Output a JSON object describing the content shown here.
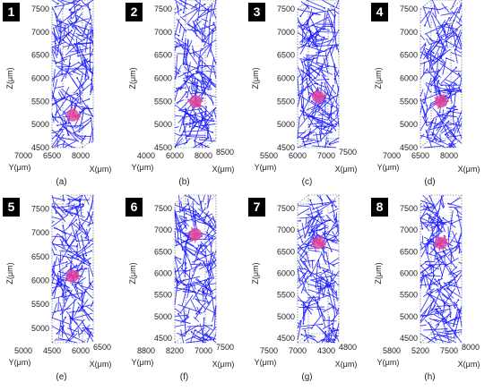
{
  "chart_data": [
    {
      "type": "scatter",
      "panel_number": "1",
      "caption": "(a)",
      "zlabel": "Z(μm)",
      "xlabel": "X(μm)",
      "ylabel": "Y(μm)",
      "z_ticks": [
        "7500",
        "7000",
        "6500",
        "6000",
        "5500",
        "5000",
        "4500"
      ],
      "zlim": [
        4500,
        7500
      ],
      "y_ticks": [
        "7000",
        "6500"
      ],
      "x_ticks": [
        "8000"
      ],
      "target_z": 5200,
      "target_y": 6700,
      "target_x": 8000,
      "colors": {
        "fiber": "#1a1aff",
        "target": "#e0409a"
      }
    },
    {
      "type": "scatter",
      "panel_number": "2",
      "caption": "(b)",
      "zlabel": "Z(μm)",
      "xlabel": "X(μm)",
      "ylabel": "Y(μm)",
      "z_ticks": [
        "7500",
        "7000",
        "6500",
        "6000",
        "5500",
        "5000",
        "4500"
      ],
      "zlim": [
        4500,
        7500
      ],
      "y_ticks": [
        "4000",
        "6000"
      ],
      "x_ticks": [
        "8000",
        "8500"
      ],
      "target_z": 5500,
      "target_y": 6000,
      "target_x": 8000,
      "colors": {
        "fiber": "#1a1aff",
        "target": "#e0409a"
      }
    },
    {
      "type": "scatter",
      "panel_number": "3",
      "caption": "(c)",
      "zlabel": "Z(μm)",
      "xlabel": "X(μm)",
      "ylabel": "Y(μm)",
      "z_ticks": [
        "7500",
        "7000",
        "6500",
        "6000",
        "5500",
        "5000",
        "4500"
      ],
      "zlim": [
        4500,
        7500
      ],
      "y_ticks": [
        "5500",
        "6000"
      ],
      "x_ticks": [
        "7000",
        "7500"
      ],
      "target_z": 5600,
      "target_y": 6000,
      "target_x": 7000,
      "colors": {
        "fiber": "#1a1aff",
        "target": "#e0409a"
      }
    },
    {
      "type": "scatter",
      "panel_number": "4",
      "caption": "(d)",
      "zlabel": "Z(μm)",
      "xlabel": "X(μm)",
      "ylabel": "Y(μm)",
      "z_ticks": [
        "7500",
        "7000",
        "6500",
        "6000",
        "5500",
        "5000",
        "4500"
      ],
      "zlim": [
        4500,
        7500
      ],
      "y_ticks": [
        "7000",
        "6500"
      ],
      "x_ticks": [
        "8000"
      ],
      "target_z": 5500,
      "target_y": 6700,
      "target_x": 8000,
      "colors": {
        "fiber": "#1a1aff",
        "target": "#e0409a"
      }
    },
    {
      "type": "scatter",
      "panel_number": "5",
      "caption": "(e)",
      "zlabel": "Z(μm)",
      "xlabel": "X(μm)",
      "ylabel": "Y(μm)",
      "z_ticks": [
        "7500",
        "7000",
        "6500",
        "6000",
        "5500",
        "5000"
      ],
      "zlim": [
        4700,
        7600
      ],
      "y_ticks": [
        "5000",
        "4500"
      ],
      "x_ticks": [
        "6000",
        "6500"
      ],
      "target_z": 6100,
      "target_y": 4700,
      "target_x": 6000,
      "colors": {
        "fiber": "#1a1aff",
        "target": "#e0409a"
      }
    },
    {
      "type": "scatter",
      "panel_number": "6",
      "caption": "(f)",
      "zlabel": "Z(μm)",
      "xlabel": "X(μm)",
      "ylabel": "Y(μm)",
      "z_ticks": [
        "7500",
        "7000",
        "6500",
        "6000",
        "5500",
        "5000",
        "4500"
      ],
      "zlim": [
        4400,
        7600
      ],
      "y_ticks": [
        "8800",
        "8200"
      ],
      "x_ticks": [
        "7000",
        "7500"
      ],
      "target_z": 6900,
      "target_y": 8400,
      "target_x": 7000,
      "colors": {
        "fiber": "#1a1aff",
        "target": "#e0409a"
      }
    },
    {
      "type": "scatter",
      "panel_number": "7",
      "caption": "(g)",
      "zlabel": "Z(μm)",
      "xlabel": "X(μm)",
      "ylabel": "Y(μm)",
      "z_ticks": [
        "7500",
        "7000",
        "6500",
        "6000",
        "5500",
        "5000",
        "4500"
      ],
      "zlim": [
        4400,
        7600
      ],
      "y_ticks": [
        "7500",
        "7000"
      ],
      "x_ticks": [
        "4300",
        "4800"
      ],
      "target_z": 6700,
      "target_y": 7100,
      "target_x": 4300,
      "colors": {
        "fiber": "#1a1aff",
        "target": "#e0409a"
      }
    },
    {
      "type": "scatter",
      "panel_number": "8",
      "caption": "(h)",
      "zlabel": "Z(μm)",
      "xlabel": "X(μm)",
      "ylabel": "Y(μm)",
      "z_ticks": [
        "7500",
        "7000",
        "6500",
        "6000",
        "5500",
        "5000",
        "4500"
      ],
      "zlim": [
        4400,
        7600
      ],
      "y_ticks": [
        "5800",
        "5200"
      ],
      "x_ticks": [
        "7500",
        "8000"
      ],
      "target_z": 6700,
      "target_y": 5300,
      "target_x": 7500,
      "colors": {
        "fiber": "#1a1aff",
        "target": "#e0409a"
      }
    }
  ]
}
